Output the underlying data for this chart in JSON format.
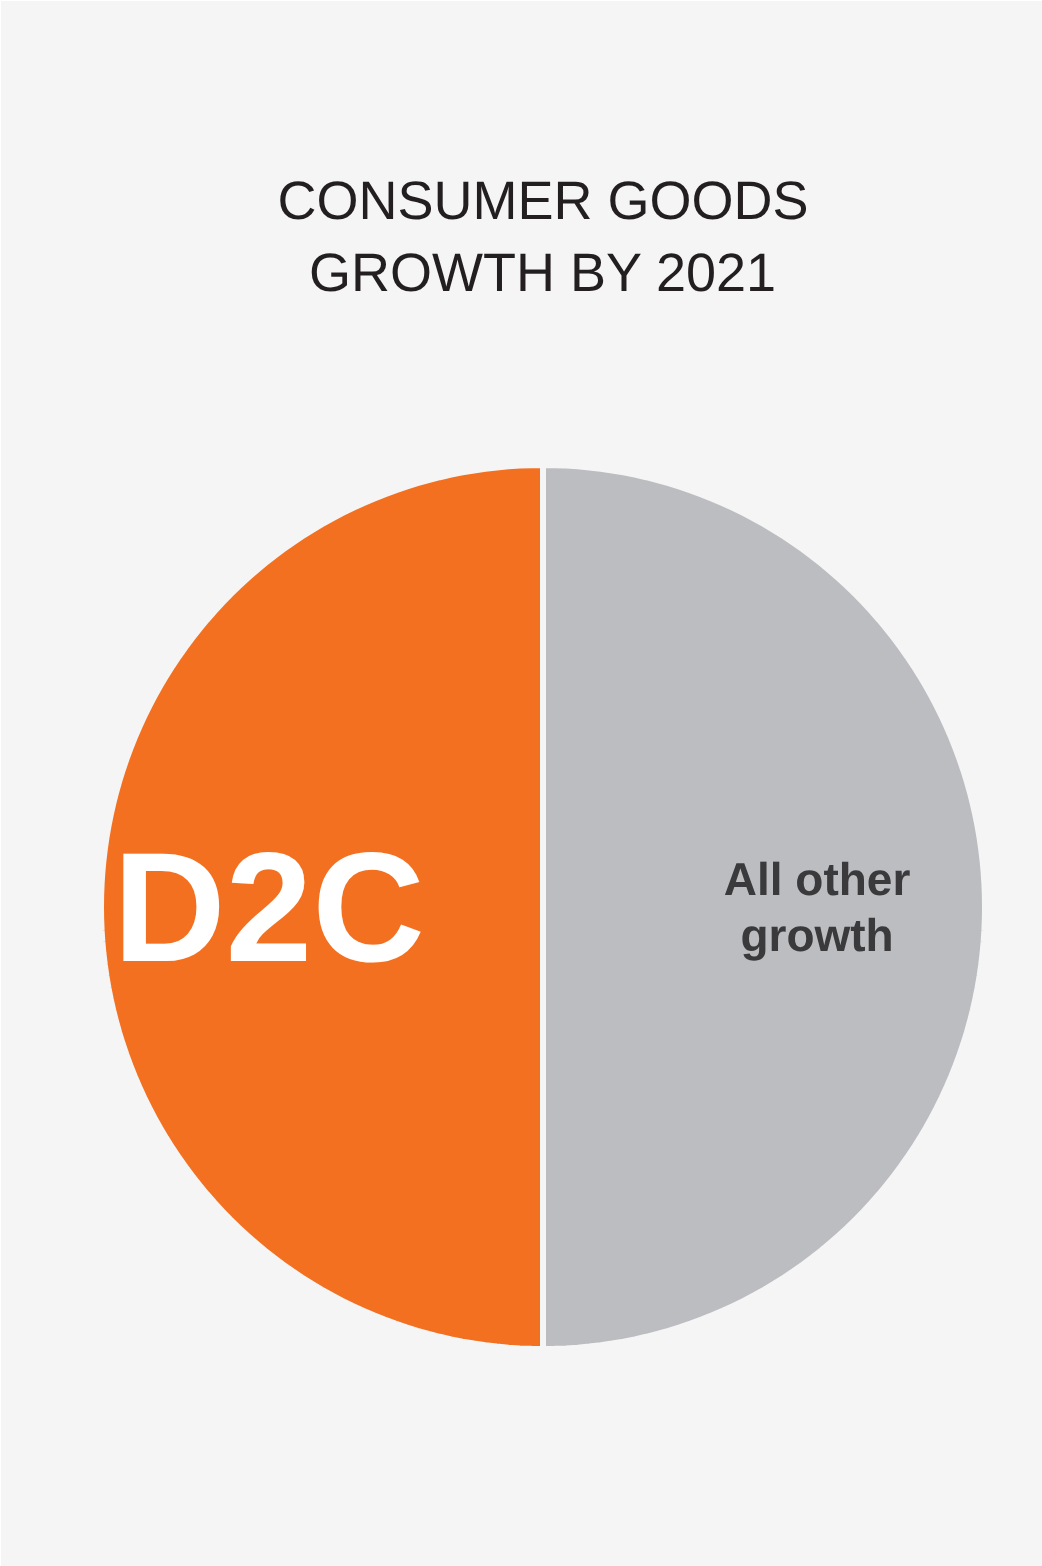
{
  "chart_data": {
    "type": "pie",
    "title": "CONSUMER GOODS GROWTH BY 2021",
    "categories": [
      "D2C",
      "All other growth"
    ],
    "values": [
      50,
      50
    ],
    "colors": [
      "#f37021",
      "#bcbdc0"
    ]
  }
}
